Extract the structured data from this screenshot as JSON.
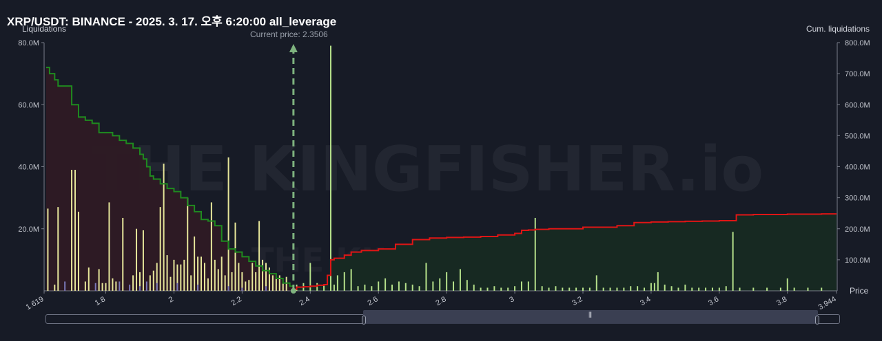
{
  "title": "XRP/USDT: BINANCE - 2025. 3. 17. 오후 6:20:00 all_leverage",
  "left_axis_title": "Liquidations",
  "right_axis_title": "Cum. liquidations",
  "x_axis_title": "Price",
  "current_price_label": "Current price: 2.3506",
  "watermark": {
    "main": "THE KINGFISHER",
    "suffix": ".io"
  },
  "colors": {
    "background": "#171b26",
    "long_cum_line": "#1f8a1f",
    "short_cum_line": "#e01515",
    "long_fill": "#2e1a24",
    "short_fill": "#172a22",
    "bar_yellow": "#e6e69a",
    "bar_green": "#b5e08a",
    "bar_purple": "#7a78b8",
    "current_price": "#7fb37f"
  },
  "chart_data": {
    "type": "bar",
    "xlim": [
      1.619,
      3.944
    ],
    "x_ticks": [
      "1.619",
      "1.8",
      "2",
      "2.2",
      "2.4",
      "2.6",
      "2.8",
      "3",
      "3.2",
      "3.4",
      "3.6",
      "3.8",
      "3.944"
    ],
    "x_tick_values": [
      1.619,
      1.8,
      2.0,
      2.2,
      2.4,
      2.6,
      2.8,
      3.0,
      3.2,
      3.4,
      3.6,
      3.8,
      3.944
    ],
    "y_left": {
      "label": "Liquidations",
      "ylim": [
        0,
        80
      ],
      "unit": "M",
      "ticks": [
        "20.0M",
        "40.0M",
        "60.0M",
        "80.0M"
      ]
    },
    "y_right": {
      "label": "Cum. liquidations",
      "ylim": [
        0,
        800
      ],
      "unit": "M",
      "ticks": [
        "100.0M",
        "200.0M",
        "300.0M",
        "400.0M",
        "500.0M",
        "600.0M",
        "700.0M",
        "800.0M"
      ]
    },
    "current_price": 2.3506,
    "long_bars": {
      "name": "Long liquidations",
      "x": [
        1.63,
        1.65,
        1.66,
        1.7,
        1.71,
        1.72,
        1.74,
        1.75,
        1.78,
        1.79,
        1.8,
        1.81,
        1.82,
        1.83,
        1.85,
        1.88,
        1.89,
        1.9,
        1.91,
        1.93,
        1.94,
        1.95,
        1.96,
        1.97,
        1.98,
        1.99,
        2.0,
        2.01,
        2.02,
        2.03,
        2.04,
        2.05,
        2.06,
        2.07,
        2.08,
        2.09,
        2.1,
        2.11,
        2.12,
        2.13,
        2.14,
        2.15,
        2.16,
        2.17,
        2.18,
        2.19,
        2.2,
        2.21,
        2.22,
        2.23,
        2.24,
        2.25,
        2.26,
        2.27,
        2.28,
        2.29,
        2.3,
        2.31,
        2.32,
        2.33
      ],
      "values": [
        26.5,
        2.0,
        27.0,
        39.0,
        39.0,
        25.5,
        3.0,
        7.5,
        7.0,
        2.5,
        2.5,
        28.5,
        4.0,
        3.0,
        23.5,
        5.0,
        20.0,
        6.0,
        19.5,
        5.0,
        6.5,
        9.0,
        27.0,
        41.0,
        11.5,
        4.5,
        10.0,
        8.5,
        8.5,
        10.0,
        30.0,
        5.0,
        17.5,
        11.0,
        11.0,
        9.0,
        4.0,
        28.5,
        10.0,
        7.0,
        11.0,
        5.0,
        43.0,
        6.0,
        22.0,
        9.0,
        6.0,
        3.0,
        3.5,
        9.0,
        6.0,
        22.5,
        10.0,
        9.0,
        7.5,
        5.0,
        4.0,
        5.0,
        2.5,
        4.5
      ]
    },
    "short_bars": {
      "name": "Short liquidations",
      "x": [
        2.36,
        2.38,
        2.4,
        2.42,
        2.44,
        2.46,
        2.47,
        2.48,
        2.5,
        2.52,
        2.54,
        2.56,
        2.58,
        2.6,
        2.62,
        2.64,
        2.66,
        2.68,
        2.7,
        2.72,
        2.74,
        2.76,
        2.78,
        2.8,
        2.82,
        2.84,
        2.86,
        2.88,
        2.9,
        2.92,
        2.94,
        2.96,
        2.98,
        3.0,
        3.02,
        3.04,
        3.06,
        3.08,
        3.1,
        3.12,
        3.14,
        3.16,
        3.18,
        3.2,
        3.22,
        3.24,
        3.26,
        3.28,
        3.3,
        3.32,
        3.34,
        3.36,
        3.38,
        3.4,
        3.41,
        3.42,
        3.44,
        3.46,
        3.48,
        3.5,
        3.52,
        3.54,
        3.56,
        3.58,
        3.6,
        3.62,
        3.64,
        3.66,
        3.7,
        3.74,
        3.78,
        3.8,
        3.82,
        3.86,
        3.9
      ],
      "values": [
        2.0,
        2.5,
        9.0,
        2.5,
        2.0,
        79.0,
        2.0,
        5.0,
        6.0,
        7.0,
        1.5,
        2.0,
        1.5,
        3.0,
        4.0,
        2.0,
        3.0,
        2.5,
        2.0,
        1.5,
        9.0,
        3.0,
        4.0,
        6.0,
        3.0,
        7.0,
        3.5,
        2.0,
        1.0,
        1.0,
        1.5,
        1.0,
        1.0,
        1.5,
        3.0,
        3.0,
        23.5,
        1.5,
        1.0,
        1.5,
        1.0,
        1.0,
        1.0,
        1.0,
        1.0,
        5.0,
        1.0,
        1.0,
        1.0,
        1.0,
        1.5,
        1.5,
        1.0,
        2.5,
        2.5,
        6.0,
        2.0,
        1.5,
        1.0,
        2.0,
        1.0,
        1.0,
        1.0,
        1.0,
        1.0,
        1.5,
        19.0,
        1.0,
        1.0,
        1.0,
        1.0,
        4.0,
        1.0,
        1.0,
        1.0
      ]
    },
    "purple_bars": {
      "x": [
        1.68,
        1.77,
        1.84,
        1.87,
        1.9,
        1.92,
        1.95,
        2.01,
        2.07,
        2.16,
        2.2,
        2.27
      ],
      "values": [
        3.0,
        2.5,
        3.0,
        2.0,
        1.5,
        3.0,
        2.5,
        2.5,
        2.0,
        1.5,
        1.0,
        1.5
      ]
    },
    "long_cum": {
      "name": "Cum. long liquidations",
      "x": [
        1.625,
        1.63,
        1.635,
        1.65,
        1.66,
        1.68,
        1.7,
        1.72,
        1.74,
        1.76,
        1.78,
        1.8,
        1.82,
        1.84,
        1.86,
        1.88,
        1.9,
        1.91,
        1.92,
        1.93,
        1.94,
        1.96,
        1.98,
        2.0,
        2.02,
        2.04,
        2.06,
        2.08,
        2.1,
        2.12,
        2.14,
        2.16,
        2.18,
        2.2,
        2.22,
        2.24,
        2.26,
        2.28,
        2.3,
        2.32,
        2.34,
        2.3506
      ],
      "values": [
        720,
        720,
        700,
        680,
        660,
        660,
        600,
        560,
        550,
        540,
        510,
        510,
        500,
        485,
        475,
        460,
        440,
        425,
        400,
        370,
        360,
        345,
        330,
        320,
        300,
        275,
        255,
        230,
        225,
        210,
        160,
        135,
        125,
        110,
        95,
        80,
        65,
        55,
        40,
        25,
        15,
        5
      ]
    },
    "short_cum": {
      "name": "Cum. short liquidations",
      "x": [
        2.3506,
        2.36,
        2.38,
        2.4,
        2.42,
        2.44,
        2.45,
        2.46,
        2.47,
        2.5,
        2.52,
        2.55,
        2.6,
        2.65,
        2.7,
        2.75,
        2.8,
        2.85,
        2.9,
        2.95,
        3.0,
        3.02,
        3.04,
        3.06,
        3.1,
        3.2,
        3.3,
        3.35,
        3.4,
        3.45,
        3.5,
        3.55,
        3.6,
        3.65,
        3.7,
        3.75,
        3.8,
        3.85,
        3.9,
        3.944
      ],
      "values": [
        5,
        12,
        13,
        15,
        18,
        20,
        50,
        100,
        105,
        115,
        125,
        130,
        135,
        150,
        165,
        170,
        172,
        173,
        175,
        180,
        185,
        195,
        196,
        198,
        200,
        205,
        210,
        220,
        222,
        223,
        224,
        225,
        226,
        245,
        246,
        246,
        247,
        247,
        248,
        248
      ]
    }
  }
}
